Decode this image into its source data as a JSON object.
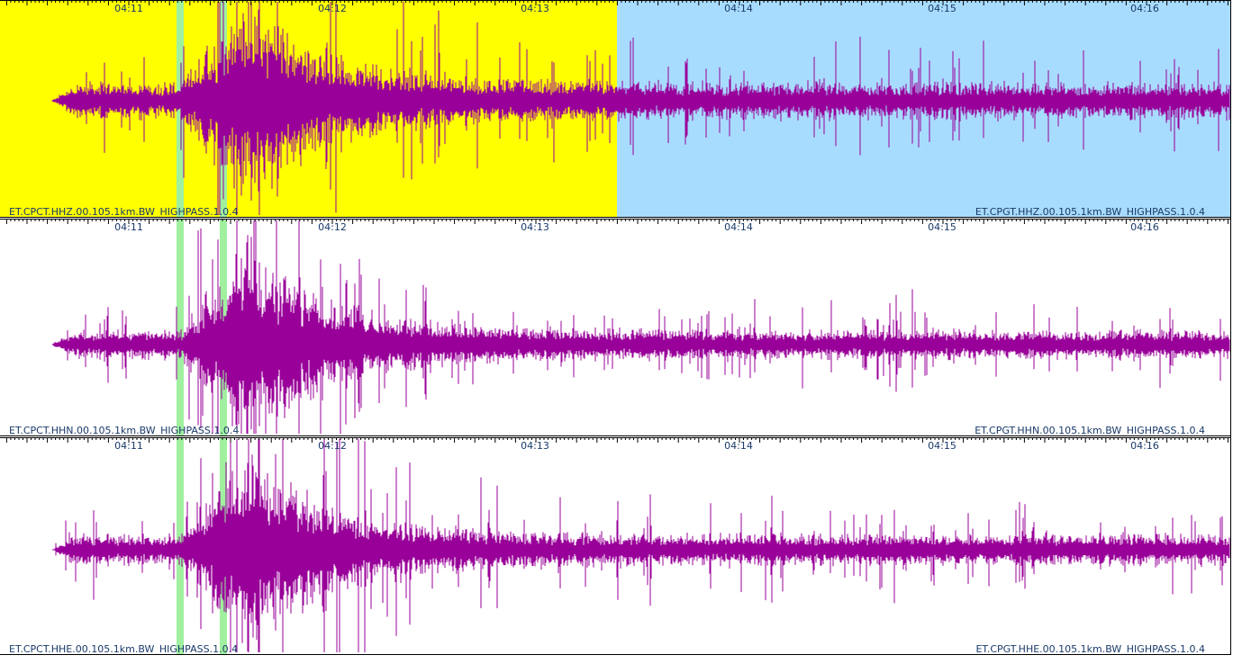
{
  "time_labels": [
    "04:11",
    "04:12",
    "04:13",
    "04:14",
    "04:15",
    "04:16"
  ],
  "panels": [
    {
      "label_left": "ET.CPCT.HHZ.00.105.1km.BW_HIGHPASS.1.0.4",
      "label_right": "ET.CPGT.HHZ.00.105.1km.BW_HIGHPASS.1.0.4"
    },
    {
      "label_left": "ET.CPCT.HHN.00.105.1km.BW_HIGHPASS.1.0.4",
      "label_right": "ET.CPGT.HHN.00.105.1km.BW_HIGHPASS.1.0.4"
    },
    {
      "label_left": "ET.CPCT.HHE.00.105.1km.BW_HIGHPASS.1.0.4",
      "label_right": "ET.CPGT.HHE.00.105.1km.BW_HIGHPASS.1.0.4"
    }
  ]
}
